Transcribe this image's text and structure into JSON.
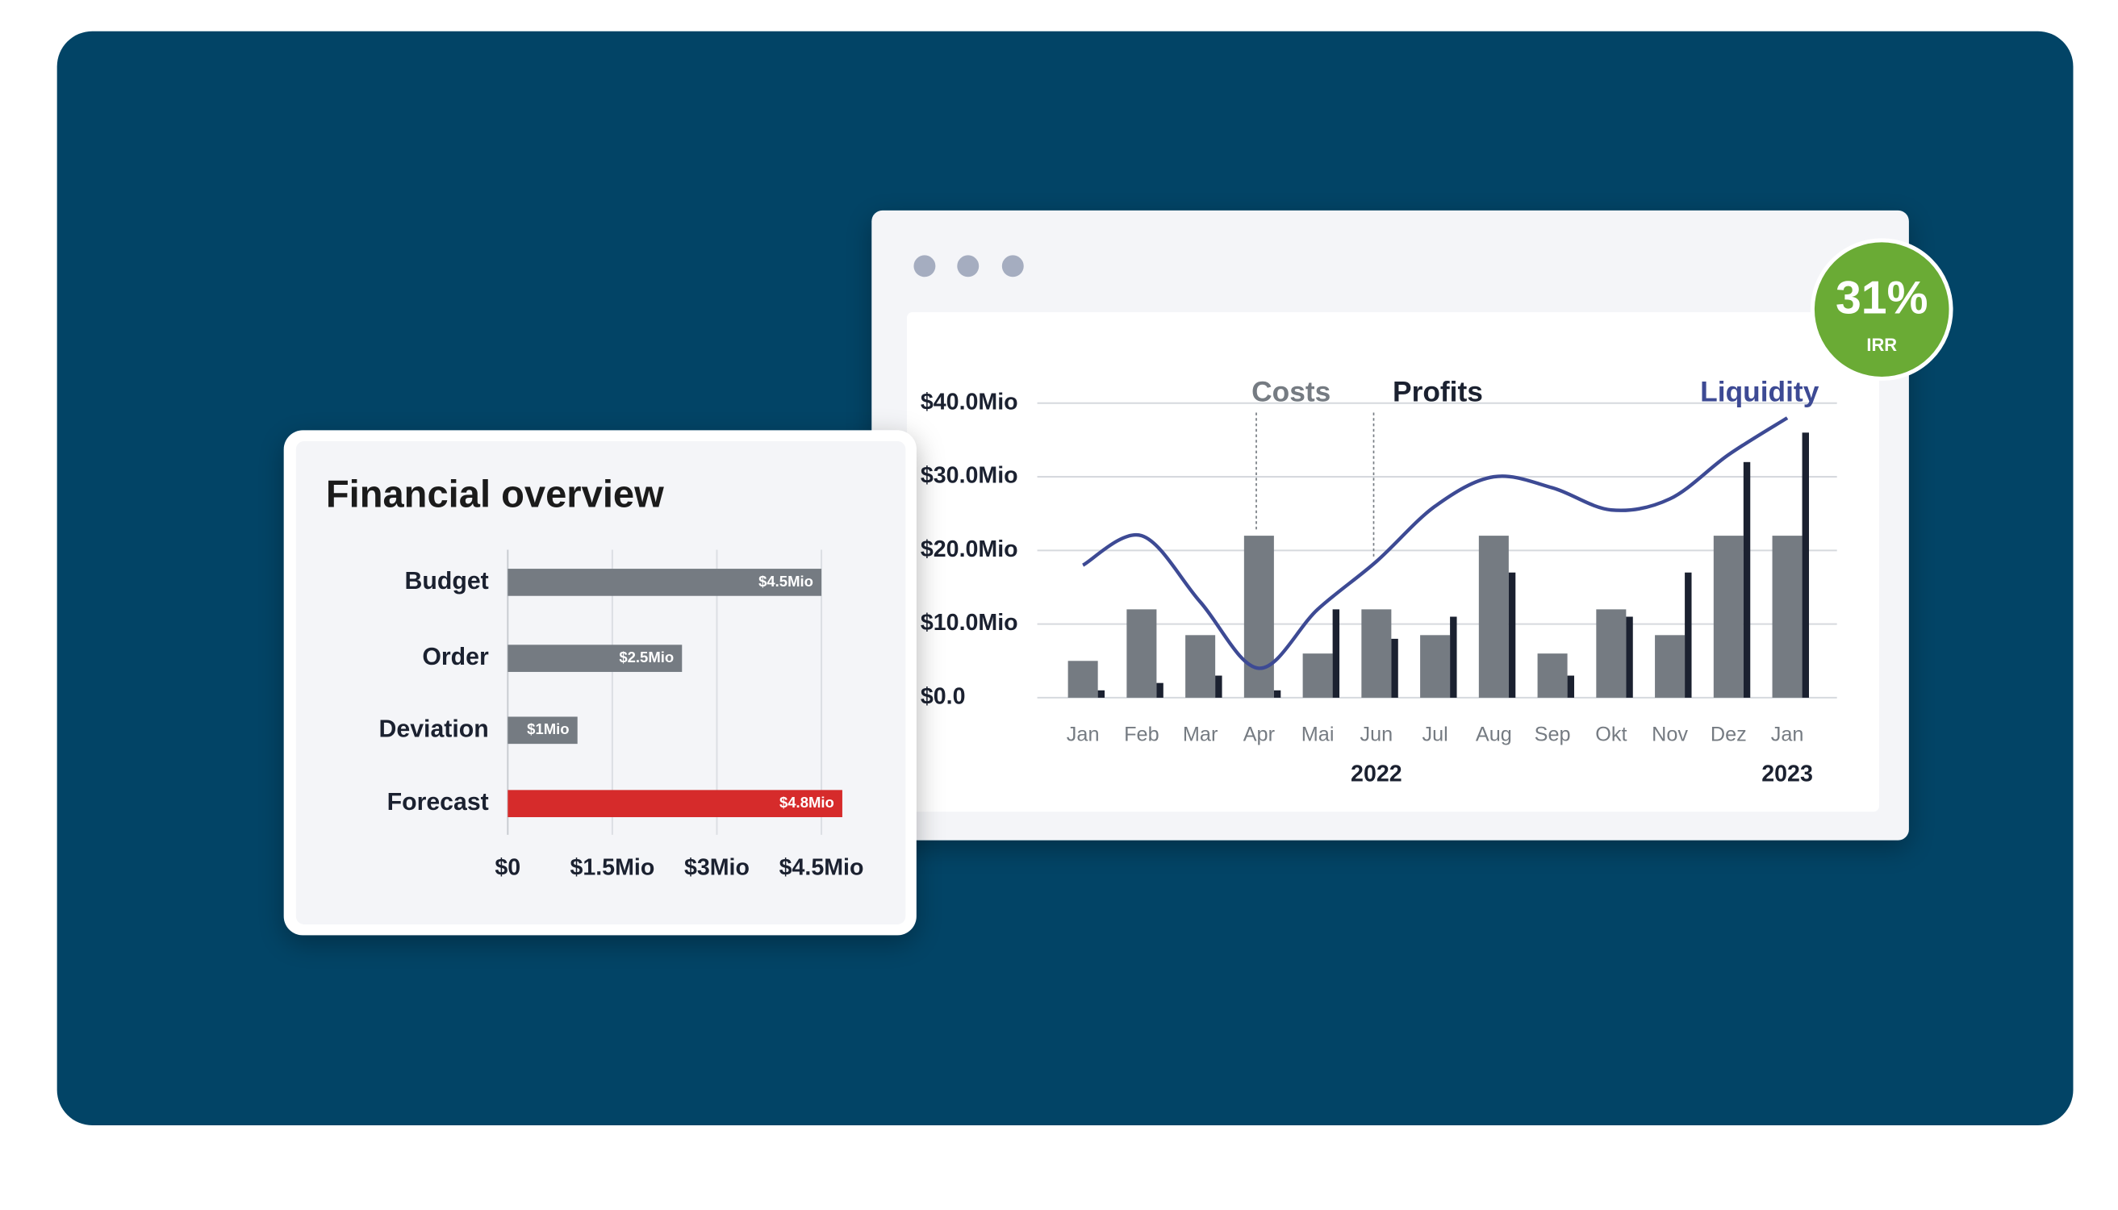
{
  "chart_data": [
    {
      "type": "hbar",
      "title": "Financial overview",
      "categories": [
        "Budget",
        "Order",
        "Deviation",
        "Forecast"
      ],
      "values": [
        4.5,
        2.5,
        1,
        4.8
      ],
      "value_labels": [
        "$4.5Mio",
        "$2.5Mio",
        "$1Mio",
        "$4.8Mio"
      ],
      "colors": [
        "#757b82",
        "#757b82",
        "#757b82",
        "#d62b2b"
      ],
      "xlim": [
        0,
        4.5
      ],
      "xticks": [
        {
          "value": 0,
          "label": "$0"
        },
        {
          "value": 1.5,
          "label": "$1.5Mio"
        },
        {
          "value": 3,
          "label": "$3Mio"
        },
        {
          "value": 4.5,
          "label": "$4.5Mio"
        }
      ],
      "grid": true
    },
    {
      "type": "combo",
      "categories": [
        "Jan",
        "Feb",
        "Mar",
        "Apr",
        "Mai",
        "Jun",
        "Jul",
        "Aug",
        "Sep",
        "Okt",
        "Nov",
        "Dez",
        "Jan"
      ],
      "years": [
        "2022",
        "2023"
      ],
      "series": [
        {
          "name": "Costs",
          "kind": "bar",
          "color": "#757b82",
          "values": [
            5,
            12,
            8.5,
            22,
            6,
            12,
            8.5,
            22,
            6,
            12,
            8.5,
            22,
            22
          ]
        },
        {
          "name": "Profits",
          "kind": "bar",
          "color": "#1b2130",
          "values": [
            1,
            2,
            3,
            1,
            12,
            8,
            11,
            17,
            3,
            11,
            17,
            32,
            36
          ]
        },
        {
          "name": "Liquidity",
          "kind": "line",
          "color": "#3d4a94",
          "values": [
            18,
            22,
            13,
            4,
            12,
            18.5,
            26,
            30,
            28.5,
            25.5,
            27,
            33,
            38
          ]
        }
      ],
      "ylim": [
        0,
        40
      ],
      "yticks": [
        {
          "value": 0,
          "label": "$0.0"
        },
        {
          "value": 10,
          "label": "$10.0Mio"
        },
        {
          "value": 20,
          "label": "$20.0Mio"
        },
        {
          "value": 30,
          "label": "$30.0Mio"
        },
        {
          "value": 40,
          "label": "$40.0Mio"
        }
      ],
      "grid": true
    }
  ],
  "badge": {
    "value": "31%",
    "label": "IRR"
  }
}
